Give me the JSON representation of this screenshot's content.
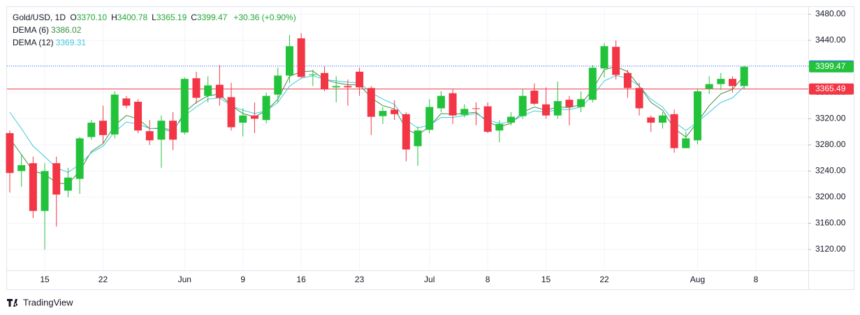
{
  "chart_data": {
    "type": "candlestick",
    "title": "Gold/USD, 1D",
    "ohlc_legend": [
      {
        "key": "O",
        "text": "3370.10"
      },
      {
        "key": "H",
        "text": "3400.78"
      },
      {
        "key": "L",
        "text": "3365.19"
      },
      {
        "key": "C",
        "text": "3399.47"
      }
    ],
    "change_text": "+30.36 (+0.90%)",
    "brand": "TradingView",
    "categories": [
      null,
      null,
      null,
      "15",
      null,
      null,
      null,
      null,
      "22",
      null,
      null,
      null,
      null,
      null,
      null,
      "Jun",
      null,
      null,
      null,
      null,
      "9",
      null,
      null,
      null,
      null,
      "16",
      null,
      null,
      null,
      null,
      "23",
      null,
      null,
      null,
      null,
      null,
      "Jul",
      null,
      null,
      null,
      null,
      "8",
      null,
      null,
      null,
      null,
      "15",
      null,
      null,
      null,
      null,
      "22",
      null,
      null,
      null,
      null,
      null,
      null,
      null,
      "Aug",
      null,
      null,
      null,
      null,
      "8",
      null,
      null,
      null,
      null
    ],
    "open": [
      3298,
      3240,
      3252,
      3179,
      3252,
      3210,
      3228,
      3292,
      3317,
      3296,
      3351,
      3346,
      3301,
      3288,
      3317,
      3299,
      3382,
      3355,
      3372,
      3353,
      3314,
      3325,
      3318,
      3357,
      3386,
      3443,
      3387,
      3390,
      3368,
      3370,
      3392,
      3367,
      3324,
      3334,
      3327,
      3278,
      3303,
      3336,
      3359,
      3326,
      3336,
      3339,
      3302,
      3314,
      3324,
      3363,
      3342,
      3325,
      3349,
      3338,
      3349,
      3397,
      3430,
      3390,
      3367,
      3322,
      3314,
      3327,
      3275,
      3287,
      3366,
      3373,
      3381,
      3370.1,
      null,
      null,
      null,
      null,
      null
    ],
    "high": [
      3302,
      3265,
      3262,
      3252,
      3262,
      3245,
      3292,
      3318,
      3340,
      3362,
      3355,
      3350,
      3318,
      3325,
      3330,
      3383,
      3392,
      3385,
      3402,
      3375,
      3336,
      3345,
      3360,
      3398,
      3448,
      3451,
      3395,
      3400,
      3385,
      3380,
      3398,
      3370,
      3338,
      3348,
      3330,
      3308,
      3350,
      3362,
      3365,
      3342,
      3345,
      3345,
      3318,
      3330,
      3365,
      3374,
      3368,
      3377,
      3355,
      3362,
      3402,
      3436,
      3440,
      3395,
      3375,
      3325,
      3330,
      3334,
      3300,
      3365,
      3385,
      3390,
      3385,
      3400.78,
      null,
      null,
      null,
      null,
      null
    ],
    "low": [
      3207,
      3216,
      3168,
      3120,
      3155,
      3200,
      3205,
      3288,
      3282,
      3290,
      3336,
      3298,
      3280,
      3245,
      3272,
      3296,
      3343,
      3345,
      3340,
      3302,
      3293,
      3298,
      3313,
      3345,
      3375,
      3382,
      3370,
      3362,
      3345,
      3340,
      3355,
      3295,
      3312,
      3318,
      3255,
      3248,
      3298,
      3330,
      3312,
      3322,
      3310,
      3298,
      3284,
      3310,
      3320,
      3341,
      3320,
      3320,
      3310,
      3330,
      3345,
      3383,
      3380,
      3352,
      3325,
      3300,
      3305,
      3268,
      3275,
      3281,
      3358,
      3364,
      3360,
      3365.19,
      null,
      null,
      null,
      null,
      null
    ],
    "close": [
      3237,
      3249,
      3179,
      3240,
      3204,
      3230,
      3290,
      3314,
      3295,
      3357,
      3340,
      3302,
      3287,
      3317,
      3288,
      3381,
      3352,
      3371,
      3352,
      3307,
      3325,
      3320,
      3355,
      3386,
      3431,
      3384,
      3388,
      3365,
      3370,
      3368,
      3368,
      3323,
      3332,
      3327,
      3273,
      3302,
      3338,
      3355,
      3325,
      3335,
      3335,
      3300,
      3312,
      3323,
      3355,
      3343,
      3325,
      3347,
      3338,
      3350,
      3398,
      3431,
      3387,
      3367,
      3336,
      3314,
      3325,
      3275,
      3290,
      3362,
      3373,
      3381,
      3370,
      3399.47,
      null,
      null,
      null,
      null,
      null
    ],
    "up_color": "#22c33b",
    "down_color": "#f23645",
    "series": [
      {
        "name": "DEMA (6)",
        "color": "#3b8f3f",
        "legend_value": "3386.02",
        "values": [
          3290,
          3265,
          3240,
          3235,
          3222,
          3220,
          3240,
          3270,
          3282,
          3310,
          3325,
          3320,
          3305,
          3305,
          3300,
          3330,
          3345,
          3355,
          3358,
          3340,
          3328,
          3323,
          3332,
          3350,
          3385,
          3392,
          3393,
          3380,
          3375,
          3372,
          3372,
          3352,
          3340,
          3335,
          3305,
          3295,
          3308,
          3328,
          3327,
          3328,
          3330,
          3315,
          3308,
          3313,
          3330,
          3338,
          3333,
          3338,
          3337,
          3342,
          3365,
          3395,
          3400,
          3392,
          3370,
          3345,
          3333,
          3305,
          3292,
          3315,
          3340,
          3358,
          3365,
          3386.02,
          null,
          null,
          null,
          null,
          null
        ]
      },
      {
        "name": "DEMA (12)",
        "color": "#3fc7dc",
        "legend_value": "3369.31",
        "values": [
          3330,
          3305,
          3278,
          3262,
          3245,
          3238,
          3250,
          3268,
          3278,
          3300,
          3315,
          3312,
          3305,
          3306,
          3303,
          3325,
          3338,
          3350,
          3352,
          3340,
          3333,
          3328,
          3332,
          3345,
          3370,
          3382,
          3386,
          3380,
          3378,
          3376,
          3375,
          3360,
          3350,
          3342,
          3318,
          3306,
          3310,
          3322,
          3322,
          3325,
          3328,
          3318,
          3313,
          3315,
          3325,
          3332,
          3330,
          3334,
          3334,
          3338,
          3355,
          3378,
          3386,
          3382,
          3370,
          3350,
          3338,
          3315,
          3302,
          3315,
          3330,
          3345,
          3352,
          3369.31,
          null,
          null,
          null,
          null,
          null
        ]
      }
    ],
    "price_lines": [
      {
        "value": 3400.68,
        "color": "#2962ff",
        "style": "dotted"
      },
      {
        "value": 3365.49,
        "color": "#f23645",
        "style": "solid"
      }
    ],
    "last_price": {
      "value": 3399.47,
      "color": "#22c33b"
    },
    "ylim": [
      3088,
      3491
    ],
    "yticks": [
      {
        "value": 3120,
        "label": "3120.00"
      },
      {
        "value": 3160,
        "label": "3160.00"
      },
      {
        "value": 3200,
        "label": "3200.00"
      },
      {
        "value": 3240,
        "label": "3240.00"
      },
      {
        "value": 3280,
        "label": "3280.00"
      },
      {
        "value": 3320,
        "label": "3320.00"
      },
      {
        "value": 3360,
        "label": "3360.00"
      },
      {
        "value": 3400,
        "label": "3400.00"
      },
      {
        "value": 3440,
        "label": "3440.00"
      },
      {
        "value": 3480,
        "label": "3480.00"
      }
    ],
    "grid": true
  }
}
